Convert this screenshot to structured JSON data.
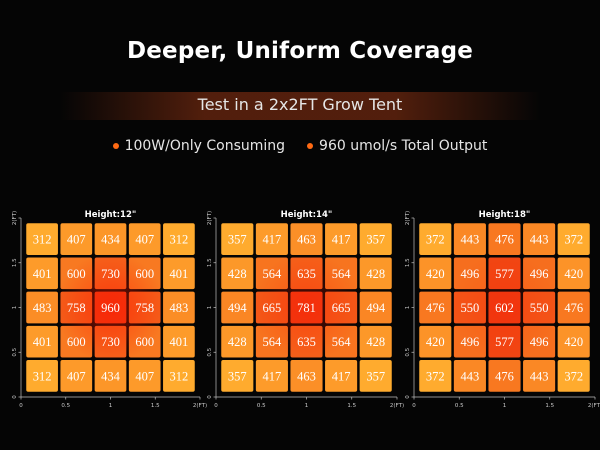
{
  "header": {
    "title": "Deeper, Uniform Coverage",
    "subtitle": "Test in a 2x2FT Grow Tent",
    "bullets": [
      "100W/Only Consuming",
      "960 umol/s Total Output"
    ]
  },
  "colors": {
    "accent": "#ff6a13",
    "cell_low": "#ffab2e",
    "cell_high": "#ef3a10",
    "background": "#050505"
  },
  "chart_data": [
    {
      "type": "heatmap",
      "title": "Height:12\"",
      "x_ticks": [
        "0",
        "0.5",
        "1",
        "1.5",
        "2(FT)"
      ],
      "y_ticks": [
        "2(FT)",
        "1.5",
        "1",
        "0.5",
        "0"
      ],
      "xlim": [
        0,
        2
      ],
      "ylim": [
        0,
        2
      ],
      "grid": [
        [
          312,
          407,
          434,
          407,
          312
        ],
        [
          401,
          600,
          730,
          600,
          401
        ],
        [
          483,
          758,
          960,
          758,
          483
        ],
        [
          401,
          600,
          730,
          600,
          401
        ],
        [
          312,
          407,
          434,
          407,
          312
        ]
      ]
    },
    {
      "type": "heatmap",
      "title": "Height:14\"",
      "x_ticks": [
        "0",
        "0.5",
        "1",
        "1.5",
        "2(FT)"
      ],
      "y_ticks": [
        "2(FT)",
        "1.5",
        "1",
        "0.5",
        "0"
      ],
      "xlim": [
        0,
        2
      ],
      "ylim": [
        0,
        2
      ],
      "grid": [
        [
          357,
          417,
          463,
          417,
          357
        ],
        [
          428,
          564,
          635,
          564,
          428
        ],
        [
          494,
          665,
          781,
          665,
          494
        ],
        [
          428,
          564,
          635,
          564,
          428
        ],
        [
          357,
          417,
          463,
          417,
          357
        ]
      ]
    },
    {
      "type": "heatmap",
      "title": "Height:18\"",
      "x_ticks": [
        "0",
        "0.5",
        "1",
        "1.5",
        "2(FT)"
      ],
      "y_ticks": [
        "2(FT)",
        "1.5",
        "1",
        "0.5",
        "0"
      ],
      "xlim": [
        0,
        2
      ],
      "ylim": [
        0,
        2
      ],
      "grid": [
        [
          372,
          443,
          476,
          443,
          372
        ],
        [
          420,
          496,
          577,
          496,
          420
        ],
        [
          476,
          550,
          602,
          550,
          476
        ],
        [
          420,
          496,
          577,
          496,
          420
        ],
        [
          372,
          443,
          476,
          443,
          372
        ]
      ]
    }
  ]
}
